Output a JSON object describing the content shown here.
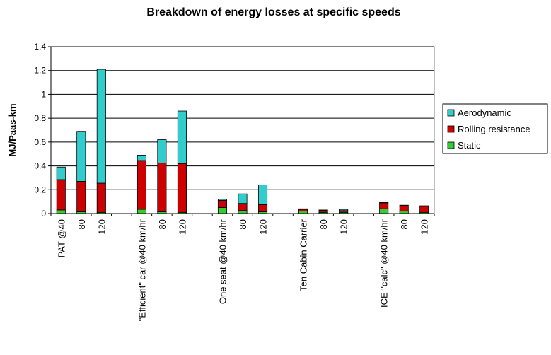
{
  "chart_data": {
    "type": "bar",
    "stacked": true,
    "title": "Breakdown of energy losses at specific speeds",
    "ylabel": "MJ/Paas-km",
    "xlabel": "",
    "ylim": [
      0,
      1.4
    ],
    "yticks": [
      "0",
      "0.2",
      "0.4",
      "0.6",
      "0.8",
      "1",
      "1.2",
      "1.4"
    ],
    "grid": true,
    "legend_position": "right",
    "categories": [
      "PAT @40",
      "80",
      "120",
      "",
      "\"Efficient\" car @40 km/hr",
      "80",
      "120",
      "",
      "One seat @40 km/hr",
      "80",
      "120",
      "",
      "Ten Cabin Carrier",
      "80",
      "120",
      "",
      "ICE \"calc\" @40 km/hr",
      "80",
      "120"
    ],
    "series": [
      {
        "name": "Static",
        "color": "#33cc33",
        "values": [
          0.03,
          0.015,
          0.01,
          null,
          0.035,
          0.015,
          0.01,
          null,
          0.05,
          0.025,
          0.015,
          null,
          0.02,
          0.01,
          0.01,
          null,
          0.04,
          0.02,
          0.01
        ]
      },
      {
        "name": "Rolling resistance",
        "color": "#cc0000",
        "values": [
          0.255,
          0.255,
          0.245,
          null,
          0.41,
          0.41,
          0.41,
          null,
          0.06,
          0.06,
          0.06,
          null,
          0.015,
          0.015,
          0.015,
          null,
          0.05,
          0.045,
          0.05
        ]
      },
      {
        "name": "Aerodynamic",
        "color": "#33cccc",
        "values": [
          0.105,
          0.42,
          0.955,
          null,
          0.045,
          0.195,
          0.44,
          null,
          0.01,
          0.08,
          0.165,
          null,
          0.005,
          0.005,
          0.01,
          null,
          0.005,
          0.005,
          0.005
        ]
      }
    ],
    "legend_order": [
      "Aerodynamic",
      "Rolling resistance",
      "Static"
    ]
  }
}
